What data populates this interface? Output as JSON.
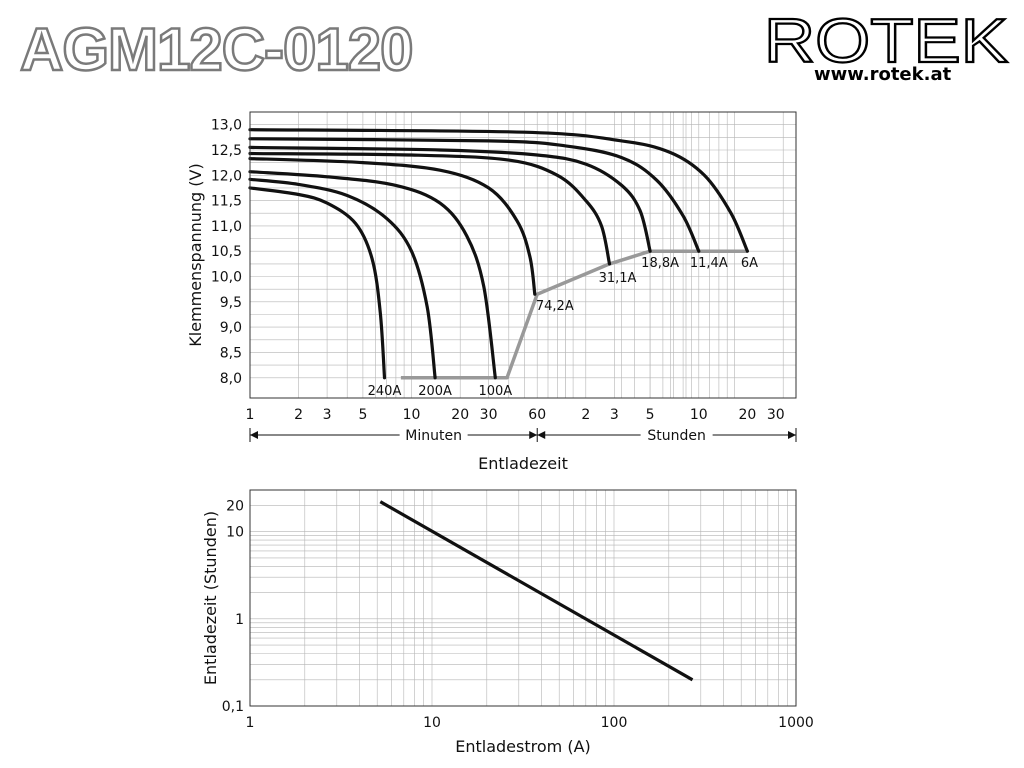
{
  "header": {
    "title": "AGM12C-0120",
    "brand": "ROTEK",
    "url": "www.rotek.at"
  },
  "colors": {
    "curve": "#111111",
    "endpoint_line": "#999999",
    "grid": "#b5b5b5",
    "title_outline": "#888888"
  },
  "chart_data": [
    {
      "type": "line",
      "title": "",
      "xlabel": "Entladezeit",
      "ylabel": "Klemmenspannung (V)",
      "xscale": "log",
      "xlim_minutes": [
        1,
        2400
      ],
      "ylim": [
        7.6,
        13.25
      ],
      "yticks": [
        "13,0",
        "12,5",
        "12,0",
        "11,5",
        "11,0",
        "10,5",
        "10,0",
        "9,5",
        "9,0",
        "8,5",
        "8,0"
      ],
      "xticks_minutes": [
        "1",
        "2",
        "3",
        "5",
        "10",
        "20",
        "30",
        "60"
      ],
      "xticks_hours": [
        "2",
        "3",
        "5",
        "10",
        "20",
        "30"
      ],
      "range_labels": {
        "minutes": "Minuten",
        "hours": "Stunden"
      },
      "grid": true,
      "series": [
        {
          "name": "240A",
          "points": [
            [
              1,
              11.75
            ],
            [
              2,
              11.62
            ],
            [
              3,
              11.45
            ],
            [
              4.5,
              11.05
            ],
            [
              5.7,
              10.35
            ],
            [
              6.4,
              9.3
            ],
            [
              6.8,
              8.0
            ]
          ]
        },
        {
          "name": "200A",
          "points": [
            [
              1,
              11.92
            ],
            [
              2,
              11.82
            ],
            [
              4,
              11.6
            ],
            [
              7,
              11.15
            ],
            [
              10,
              10.5
            ],
            [
              12.5,
              9.4
            ],
            [
              14,
              8.0
            ]
          ]
        },
        {
          "name": "100A",
          "points": [
            [
              1,
              12.07
            ],
            [
              3,
              11.97
            ],
            [
              8,
              11.8
            ],
            [
              15,
              11.45
            ],
            [
              22,
              10.8
            ],
            [
              28,
              9.8
            ],
            [
              33,
              8.0
            ]
          ]
        },
        {
          "name": "74,2A",
          "points": [
            [
              1,
              12.33
            ],
            [
              5,
              12.25
            ],
            [
              15,
              12.1
            ],
            [
              30,
              11.75
            ],
            [
              45,
              11.1
            ],
            [
              54,
              10.4
            ],
            [
              58,
              9.65
            ]
          ]
        },
        {
          "name": "31,1A",
          "points": [
            [
              1,
              12.43
            ],
            [
              10,
              12.4
            ],
            [
              40,
              12.3
            ],
            [
              80,
              12.0
            ],
            [
              120,
              11.5
            ],
            [
              150,
              11.0
            ],
            [
              168,
              10.25
            ]
          ]
        },
        {
          "name": "18,8A",
          "points": [
            [
              1,
              12.55
            ],
            [
              15,
              12.5
            ],
            [
              60,
              12.4
            ],
            [
              120,
              12.22
            ],
            [
              200,
              11.8
            ],
            [
              260,
              11.3
            ],
            [
              300,
              10.5
            ]
          ]
        },
        {
          "name": "11,4A",
          "points": [
            [
              1,
              12.72
            ],
            [
              30,
              12.68
            ],
            [
              90,
              12.58
            ],
            [
              200,
              12.35
            ],
            [
              330,
              11.9
            ],
            [
              480,
              11.2
            ],
            [
              600,
              10.5
            ]
          ]
        },
        {
          "name": "6A",
          "points": [
            [
              1,
              12.9
            ],
            [
              50,
              12.85
            ],
            [
              200,
              12.68
            ],
            [
              400,
              12.45
            ],
            [
              650,
              12.0
            ],
            [
              950,
              11.25
            ],
            [
              1200,
              10.5
            ]
          ]
        }
      ],
      "endpoint_line": [
        [
          8.6,
          8.0
        ],
        [
          39,
          8.0
        ],
        [
          60,
          9.65
        ],
        [
          168,
          10.25
        ],
        [
          300,
          10.5
        ],
        [
          1200,
          10.5
        ]
      ]
    },
    {
      "type": "line",
      "title": "",
      "xlabel": "Entladestrom (A)",
      "ylabel": "Entladezeit (Stunden)",
      "xscale": "log",
      "yscale": "log",
      "xlim": [
        1,
        1000
      ],
      "ylim": [
        0.1,
        30
      ],
      "xticks": [
        "1",
        "10",
        "100",
        "1000"
      ],
      "yticks": [
        "20",
        "10",
        "1",
        "0,1"
      ],
      "grid": true,
      "series": [
        {
          "name": "",
          "points": [
            [
              5.2,
              22
            ],
            [
              270,
              0.2
            ]
          ]
        }
      ]
    }
  ]
}
